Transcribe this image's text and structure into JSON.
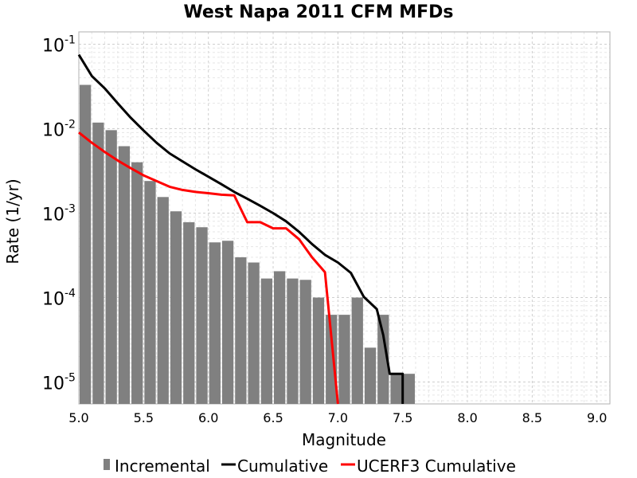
{
  "chart_data": {
    "type": "bar",
    "title": "West Napa 2011 CFM MFDs",
    "xlabel": "Magnitude",
    "ylabel": "Rate (1/yr)",
    "xlim": [
      5.0,
      9.1
    ],
    "ylim": [
      5.5e-06,
      0.14
    ],
    "yscale": "log",
    "grid": true,
    "legend_position": "bottom",
    "x_tick_labels": [
      "5.0",
      "5.5",
      "6.0",
      "6.5",
      "7.0",
      "7.5",
      "8.0",
      "8.5",
      "9.0"
    ],
    "y_tick_labels": [
      {
        "base": "10",
        "exp": "-1",
        "value": 0.1
      },
      {
        "base": "10",
        "exp": "-2",
        "value": 0.01
      },
      {
        "base": "10",
        "exp": "-3",
        "value": 0.001
      },
      {
        "base": "10",
        "exp": "-4",
        "value": 0.0001
      },
      {
        "base": "10",
        "exp": "-5",
        "value": 1e-05
      }
    ],
    "series": [
      {
        "name": "Incremental",
        "kind": "bar",
        "color": "#808080",
        "x": [
          5.0,
          5.1,
          5.2,
          5.3,
          5.4,
          5.5,
          5.6,
          5.7,
          5.8,
          5.9,
          6.0,
          6.1,
          6.2,
          6.3,
          6.4,
          6.5,
          6.6,
          6.7,
          6.8,
          6.9,
          7.0,
          7.1,
          7.2,
          7.3,
          7.4,
          7.5
        ],
        "values": [
          0.033,
          0.0118,
          0.0096,
          0.0062,
          0.004,
          0.0024,
          0.00155,
          0.00105,
          0.00078,
          0.00068,
          0.00045,
          0.00047,
          0.0003,
          0.00026,
          0.000168,
          0.000205,
          0.000168,
          0.000162,
          0.0001,
          6.25e-05,
          6.25e-05,
          0.0001,
          2.55e-05,
          6.25e-05,
          1.25e-05,
          1.25e-05
        ]
      },
      {
        "name": "Cumulative",
        "kind": "line",
        "color": "#000000",
        "x": [
          5.0,
          5.1,
          5.2,
          5.3,
          5.4,
          5.5,
          5.6,
          5.7,
          5.8,
          5.9,
          6.0,
          6.1,
          6.2,
          6.3,
          6.4,
          6.5,
          6.6,
          6.7,
          6.8,
          6.9,
          7.0,
          7.1,
          7.2,
          7.3,
          7.35,
          7.4,
          7.45,
          7.5,
          7.5
        ],
        "values": [
          0.075,
          0.042,
          0.03,
          0.02,
          0.0135,
          0.0095,
          0.0068,
          0.0051,
          0.0041,
          0.0033,
          0.0027,
          0.0022,
          0.00178,
          0.00148,
          0.00122,
          0.001,
          0.0008,
          0.0006,
          0.00043,
          0.00032,
          0.00026,
          0.000196,
          0.000102,
          7.3e-05,
          3.6e-05,
          1.25e-05,
          1.25e-05,
          1.25e-05,
          5.5e-06
        ]
      },
      {
        "name": "UCERF3 Cumulative",
        "kind": "line",
        "color": "#ff0000",
        "x": [
          5.0,
          5.1,
          5.2,
          5.3,
          5.4,
          5.5,
          5.6,
          5.7,
          5.8,
          5.9,
          6.0,
          6.1,
          6.2,
          6.3,
          6.4,
          6.5,
          6.6,
          6.7,
          6.8,
          6.9,
          7.0
        ],
        "values": [
          0.009,
          0.0068,
          0.0053,
          0.0042,
          0.0034,
          0.0028,
          0.0024,
          0.00205,
          0.00188,
          0.00178,
          0.00172,
          0.00165,
          0.00162,
          0.00078,
          0.00078,
          0.00066,
          0.00066,
          0.00049,
          0.0003,
          0.0002,
          5.5e-06
        ]
      }
    ]
  }
}
